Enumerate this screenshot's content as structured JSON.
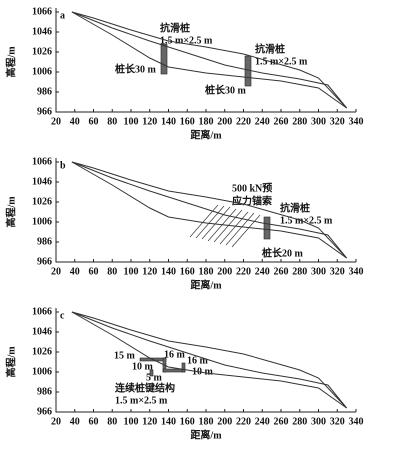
{
  "chart_data": [
    {
      "type": "line",
      "label": "a",
      "xlabel": "距离/m",
      "ylabel": "高程/m",
      "xlim": [
        20,
        340
      ],
      "ylim": [
        966,
        1066
      ],
      "xticks": [
        20,
        40,
        60,
        80,
        100,
        120,
        140,
        160,
        180,
        200,
        220,
        240,
        260,
        280,
        300,
        320,
        340
      ],
      "yticks": [
        966,
        986,
        1006,
        1026,
        1046,
        1066
      ],
      "series": [
        {
          "color": "#333",
          "x": [
            37,
            60,
            100,
            140,
            180,
            220,
            250,
            280,
            300,
            330
          ],
          "values": [
            1066,
            1060,
            1048,
            1037,
            1031,
            1024,
            1016,
            1008,
            1000,
            970
          ]
        },
        {
          "color": "#333",
          "x": [
            37,
            80,
            120,
            160,
            200,
            240,
            280,
            310,
            330
          ],
          "values": [
            1066,
            1050,
            1037,
            1025,
            1013,
            1005,
            999,
            993,
            970
          ]
        },
        {
          "color": "#333",
          "x": [
            37,
            80,
            120,
            140,
            180,
            220,
            260,
            300,
            330
          ],
          "values": [
            1066,
            1043,
            1020,
            1011,
            1005,
            1001,
            997,
            990,
            970
          ]
        }
      ],
      "annotations": [
        "抗滑桩",
        "1.5 m×2.5 m",
        "桩长30 m",
        "抗滑桩",
        "1.5 m×2.5 m",
        "桩长30 m"
      ]
    },
    {
      "type": "line",
      "label": "b",
      "xlabel": "距离/m",
      "ylabel": "高程/m",
      "xlim": [
        20,
        340
      ],
      "ylim": [
        966,
        1066
      ],
      "xticks": [
        20,
        40,
        60,
        80,
        100,
        120,
        140,
        160,
        180,
        200,
        220,
        240,
        260,
        280,
        300,
        320,
        340
      ],
      "yticks": [
        966,
        986,
        1006,
        1026,
        1046,
        1066
      ],
      "series": [
        {
          "color": "#333",
          "x": [
            37,
            60,
            100,
            140,
            180,
            220,
            250,
            280,
            300,
            330
          ],
          "values": [
            1066,
            1060,
            1048,
            1037,
            1031,
            1024,
            1016,
            1008,
            1000,
            970
          ]
        },
        {
          "color": "#333",
          "x": [
            37,
            80,
            120,
            160,
            200,
            240,
            280,
            310,
            330
          ],
          "values": [
            1066,
            1050,
            1037,
            1025,
            1013,
            1005,
            999,
            993,
            970
          ]
        },
        {
          "color": "#333",
          "x": [
            37,
            80,
            120,
            140,
            180,
            220,
            260,
            300,
            330
          ],
          "values": [
            1066,
            1043,
            1020,
            1011,
            1005,
            1001,
            997,
            990,
            970
          ]
        }
      ],
      "annotations": [
        "500 kN预",
        "应力锚索",
        "抗滑桩",
        "1.5 m×2.5 m",
        "桩长20 m"
      ]
    },
    {
      "type": "line",
      "label": "c",
      "xlabel": "距离/m",
      "ylabel": "高程/m",
      "xlim": [
        20,
        340
      ],
      "ylim": [
        966,
        1066
      ],
      "xticks": [
        20,
        40,
        60,
        80,
        100,
        120,
        140,
        160,
        180,
        200,
        220,
        240,
        260,
        280,
        300,
        320,
        340
      ],
      "yticks": [
        966,
        986,
        1006,
        1026,
        1046,
        1066
      ],
      "series": [
        {
          "color": "#333",
          "x": [
            37,
            60,
            100,
            140,
            180,
            220,
            250,
            280,
            300,
            330
          ],
          "values": [
            1066,
            1060,
            1048,
            1037,
            1031,
            1024,
            1016,
            1008,
            1000,
            970
          ]
        },
        {
          "color": "#333",
          "x": [
            37,
            80,
            120,
            160,
            200,
            240,
            280,
            310,
            330
          ],
          "values": [
            1066,
            1050,
            1037,
            1025,
            1013,
            1005,
            999,
            993,
            970
          ]
        },
        {
          "color": "#333",
          "x": [
            37,
            80,
            120,
            140,
            180,
            220,
            260,
            300,
            330
          ],
          "values": [
            1066,
            1043,
            1020,
            1011,
            1005,
            1001,
            997,
            990,
            970
          ]
        }
      ],
      "annotations": [
        "15 m",
        "16 m",
        "16 m",
        "10 m",
        "10 m",
        "5 m",
        "连续桩键结构",
        "1.5 m×2.5 m"
      ]
    }
  ]
}
